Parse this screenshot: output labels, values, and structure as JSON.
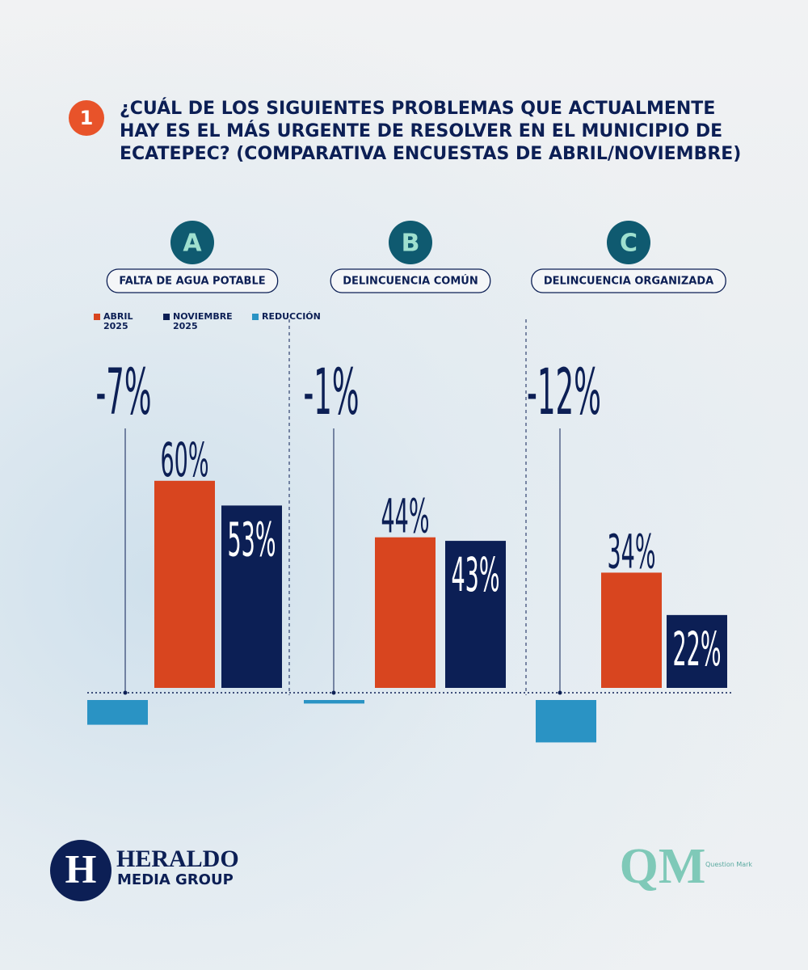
{
  "chart_data": {
    "type": "bar",
    "question_number": "1",
    "title_lines": [
      "¿CUÁL DE LOS SIGUIENTES PROBLEMAS QUE ACTUALMENTE",
      "HAY ES EL MÁS URGENTE DE RESOLVER EN EL MUNICIPIO DE",
      "ECATEPEC? (COMPARATIVA ENCUESTAS DE ABRIL/NOVIEMBRE)"
    ],
    "category_letters": [
      "A",
      "B",
      "C"
    ],
    "categories": [
      "FALTA DE AGUA POTABLE",
      "DELINCUENCIA COMÚN",
      "DELINCUENCIA ORGANIZADA"
    ],
    "series": [
      {
        "name": "ABRIL 2025",
        "color": "#d8451f",
        "values": [
          60,
          44,
          34
        ],
        "value_labels": [
          "60%",
          "44%",
          "34%"
        ]
      },
      {
        "name": "NOVIEMBRE 2025",
        "color": "#0c1f55",
        "values": [
          53,
          43,
          22
        ],
        "value_labels": [
          "53%",
          "43%",
          "22%"
        ]
      },
      {
        "name": "REDUCCIÓN",
        "color": "#2a93c4",
        "values": [
          -7,
          -1,
          -12
        ],
        "value_labels": [
          "-7%",
          "-1%",
          "-12%"
        ]
      }
    ],
    "logos": {
      "heraldo_mark": "H",
      "heraldo_name": "HERALDO",
      "heraldo_sub": "MEDIA GROUP",
      "qm_mark": "QM",
      "qm_name": "Question Mark"
    }
  }
}
